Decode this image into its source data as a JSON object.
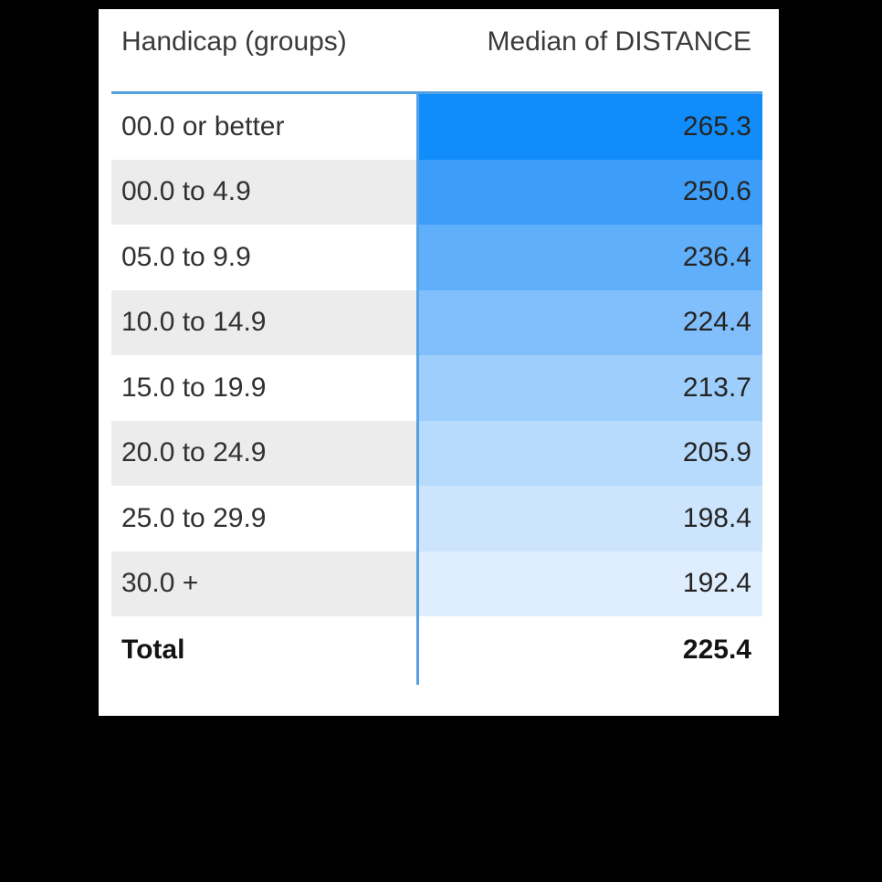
{
  "colors": {
    "page_bg": "#000000",
    "card_bg": "#FFFFFF",
    "header_text": "#3B3A39",
    "cell_text": "#323130",
    "value_text": "#252423",
    "total_text": "#141414",
    "alt_row_bg": "#ECECEC",
    "divider_blue": "#55A0E1",
    "gradient_max": "#118DFB",
    "gradient_min": "#DFEEFE"
  },
  "table": {
    "columns": [
      {
        "label": "Handicap (groups)"
      },
      {
        "label": "Median of DISTANCE"
      }
    ],
    "rows": [
      {
        "label": "00.0 or better",
        "value": "265.3",
        "value_bg": "#118DFB"
      },
      {
        "label": "00.0 to 4.9",
        "value": "250.6",
        "value_bg": "#3D9EFA"
      },
      {
        "label": "05.0 to 9.9",
        "value": "236.4",
        "value_bg": "#60AFFB"
      },
      {
        "label": "10.0 to 14.9",
        "value": "224.4",
        "value_bg": "#81BFFC"
      },
      {
        "label": "15.0 to 19.9",
        "value": "213.7",
        "value_bg": "#9ECEFC"
      },
      {
        "label": "20.0 to 24.9",
        "value": "205.9",
        "value_bg": "#B7DBFD"
      },
      {
        "label": "25.0 to 29.9",
        "value": "198.4",
        "value_bg": "#CCE5FD"
      },
      {
        "label": "30.0 +",
        "value": "192.4",
        "value_bg": "#DFEEFE"
      }
    ],
    "total": {
      "label": "Total",
      "value": "225.4"
    }
  },
  "chart_data": {
    "type": "table",
    "title": "",
    "columns": [
      "Handicap (groups)",
      "Median of DISTANCE"
    ],
    "categories": [
      "00.0 or better",
      "00.0 to 4.9",
      "05.0 to 9.9",
      "10.0 to 14.9",
      "15.0 to 19.9",
      "20.0 to 24.9",
      "25.0 to 29.9",
      "30.0 +"
    ],
    "values": [
      265.3,
      250.6,
      236.4,
      224.4,
      213.7,
      205.9,
      198.4,
      192.4
    ],
    "total": 225.4,
    "value_range": [
      192.4,
      265.3
    ],
    "conditional_formatting": {
      "column": "Median of DISTANCE",
      "style": "background_color_gradient",
      "min_color": "#DFEEFE",
      "max_color": "#118DFB"
    },
    "layout_hints": {
      "header_divider_color": "#55A0E1",
      "alternating_row_shading": true,
      "values_alignment": "right"
    }
  }
}
